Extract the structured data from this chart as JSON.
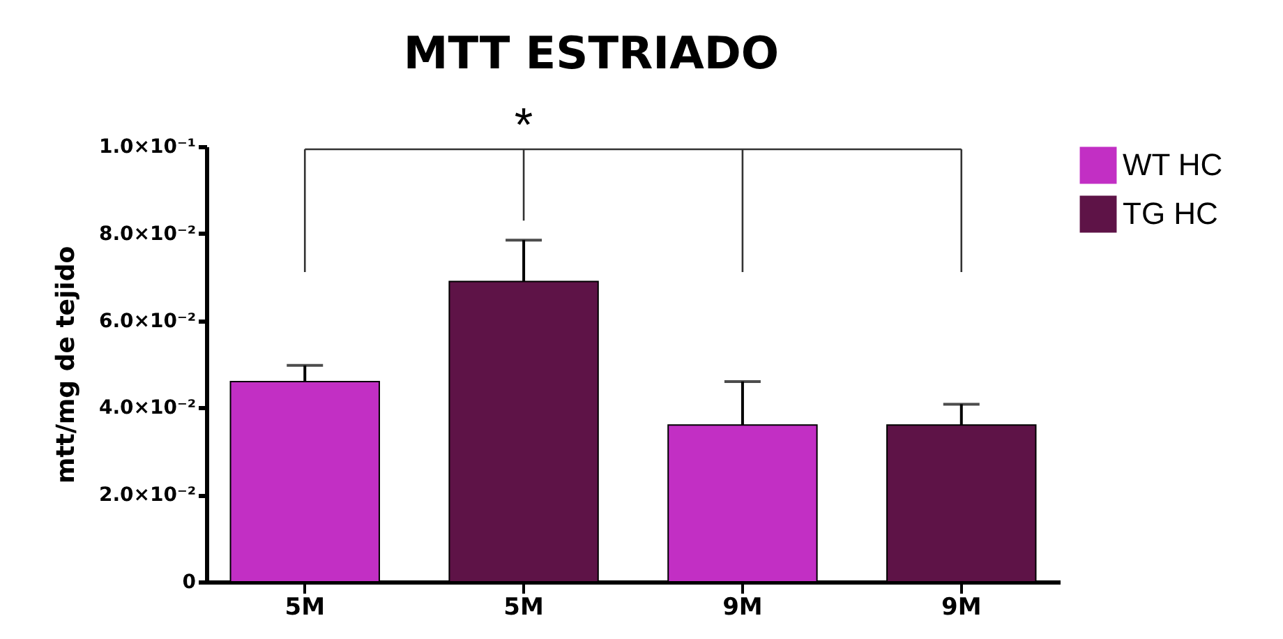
{
  "chart_data": {
    "type": "bar",
    "title": "MTT ESTRIADO",
    "ylabel": "mtt/mg de tejido",
    "categories": [
      "5M",
      "5M",
      "9M",
      "9M"
    ],
    "series": [
      {
        "name": "WT HC",
        "color": "#c22fc4",
        "values": [
          0.046,
          null,
          0.036,
          null
        ],
        "errors": [
          [
            0.046,
            0.0497
          ],
          null,
          [
            0.036,
            0.046
          ],
          null
        ]
      },
      {
        "name": "TG HC",
        "color": "#5e1347",
        "values": [
          null,
          0.069,
          null,
          0.036
        ],
        "errors": [
          null,
          [
            0.069,
            0.0785
          ],
          null,
          [
            0.036,
            0.0408
          ]
        ]
      }
    ],
    "ylim": [
      0,
      0.1
    ],
    "yticks": [
      {
        "value": 0,
        "label": "0"
      },
      {
        "value": 0.02,
        "label": "2.0×10⁻²"
      },
      {
        "value": 0.04,
        "label": "4.0×10⁻²"
      },
      {
        "value": 0.06,
        "label": "6.0×10⁻²"
      },
      {
        "value": 0.08,
        "label": "8.0×10⁻²"
      },
      {
        "value": 0.1,
        "label": "1.0×10⁻¹"
      }
    ],
    "grid": false,
    "legend": "top right",
    "annotations": [
      "*"
    ]
  }
}
